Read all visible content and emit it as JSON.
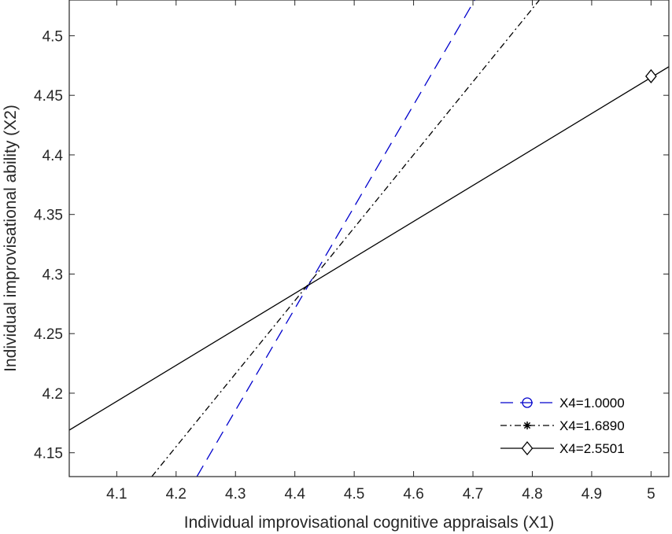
{
  "chart_data": {
    "type": "line",
    "title": "",
    "xlabel": "Individual improvisational cognitive appraisals (X1)",
    "ylabel": "Individual improvisational ability (X2)",
    "xlim": [
      4.02,
      5.03
    ],
    "ylim": [
      4.13,
      4.53
    ],
    "xticks": [
      4.1,
      4.2,
      4.3,
      4.4,
      4.5,
      4.6,
      4.7,
      4.8,
      4.9,
      5
    ],
    "xtick_labels": [
      "4.1",
      "4.2",
      "4.3",
      "4.4",
      "4.5",
      "4.6",
      "4.7",
      "4.8",
      "4.9",
      "5"
    ],
    "yticks": [
      4.15,
      4.2,
      4.25,
      4.3,
      4.35,
      4.4,
      4.45,
      4.5
    ],
    "ytick_labels": [
      "4.15",
      "4.2",
      "4.25",
      "4.3",
      "4.35",
      "4.4",
      "4.45",
      "4.5"
    ],
    "grid": false,
    "legend_position": "bottom-right",
    "series": [
      {
        "name": "X4=1.0000",
        "color": "#0000cc",
        "dash": "dashed",
        "marker": "circle",
        "x": [
          4.235,
          4.703
        ],
        "y": [
          4.13,
          4.53
        ]
      },
      {
        "name": "X4=1.6890",
        "color": "#000000",
        "dash": "dash-dot",
        "marker": "star",
        "x": [
          4.159,
          4.812
        ],
        "y": [
          4.13,
          4.53
        ]
      },
      {
        "name": "X4=2.5501",
        "color": "#000000",
        "dash": "solid",
        "marker": "diamond",
        "x": [
          4.02,
          5.03
        ],
        "y": [
          4.169,
          4.474
        ],
        "marker_points": [
          [
            5.0,
            4.466
          ]
        ]
      }
    ]
  }
}
